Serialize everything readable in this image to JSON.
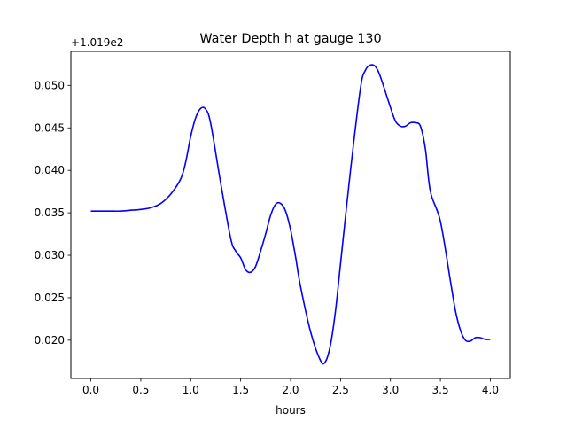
{
  "chart_data": {
    "type": "line",
    "title": "Water Depth h at gauge 130",
    "xlabel": "hours",
    "ylabel": "",
    "y_offset_label": "+1.019e2",
    "xlim": [
      -0.2,
      4.2
    ],
    "ylim": [
      0.0155,
      0.054
    ],
    "xticks": [
      0.0,
      0.5,
      1.0,
      1.5,
      2.0,
      2.5,
      3.0,
      3.5,
      4.0
    ],
    "xtick_labels": [
      "0.0",
      "0.5",
      "1.0",
      "1.5",
      "2.0",
      "2.5",
      "3.0",
      "3.5",
      "4.0"
    ],
    "yticks": [
      0.02,
      0.025,
      0.03,
      0.035,
      0.04,
      0.045,
      0.05
    ],
    "ytick_labels": [
      "0.020",
      "0.025",
      "0.030",
      "0.035",
      "0.040",
      "0.045",
      "0.050"
    ],
    "grid": false,
    "legend": "none",
    "series": [
      {
        "color": "#0000ff",
        "x": [
          0.0,
          0.1,
          0.2,
          0.3,
          0.4,
          0.5,
          0.6,
          0.7,
          0.8,
          0.9,
          0.95,
          1.0,
          1.05,
          1.1,
          1.15,
          1.2,
          1.3,
          1.4,
          1.45,
          1.5,
          1.55,
          1.6,
          1.65,
          1.7,
          1.75,
          1.8,
          1.85,
          1.9,
          1.95,
          2.0,
          2.05,
          2.1,
          2.2,
          2.3,
          2.35,
          2.4,
          2.45,
          2.5,
          2.6,
          2.7,
          2.75,
          2.8,
          2.85,
          2.9,
          3.0,
          3.05,
          3.1,
          3.15,
          3.2,
          3.25,
          3.3,
          3.35,
          3.4,
          3.5,
          3.6,
          3.65,
          3.7,
          3.75,
          3.8,
          3.85,
          3.9,
          3.95,
          4.0
        ],
        "y": [
          0.0352,
          0.0352,
          0.0352,
          0.0352,
          0.0353,
          0.0354,
          0.0356,
          0.0361,
          0.0372,
          0.039,
          0.041,
          0.044,
          0.0462,
          0.0473,
          0.0472,
          0.0455,
          0.0385,
          0.032,
          0.0305,
          0.0297,
          0.0283,
          0.028,
          0.0287,
          0.0305,
          0.0325,
          0.0347,
          0.036,
          0.0361,
          0.0352,
          0.033,
          0.0298,
          0.0263,
          0.021,
          0.0176,
          0.0175,
          0.0195,
          0.0235,
          0.029,
          0.04,
          0.0497,
          0.0518,
          0.0524,
          0.0522,
          0.051,
          0.0474,
          0.0458,
          0.0452,
          0.0452,
          0.0456,
          0.0456,
          0.0452,
          0.0425,
          0.0375,
          0.034,
          0.027,
          0.0235,
          0.0212,
          0.02,
          0.0199,
          0.0203,
          0.0203,
          0.0201,
          0.0201
        ]
      }
    ]
  }
}
